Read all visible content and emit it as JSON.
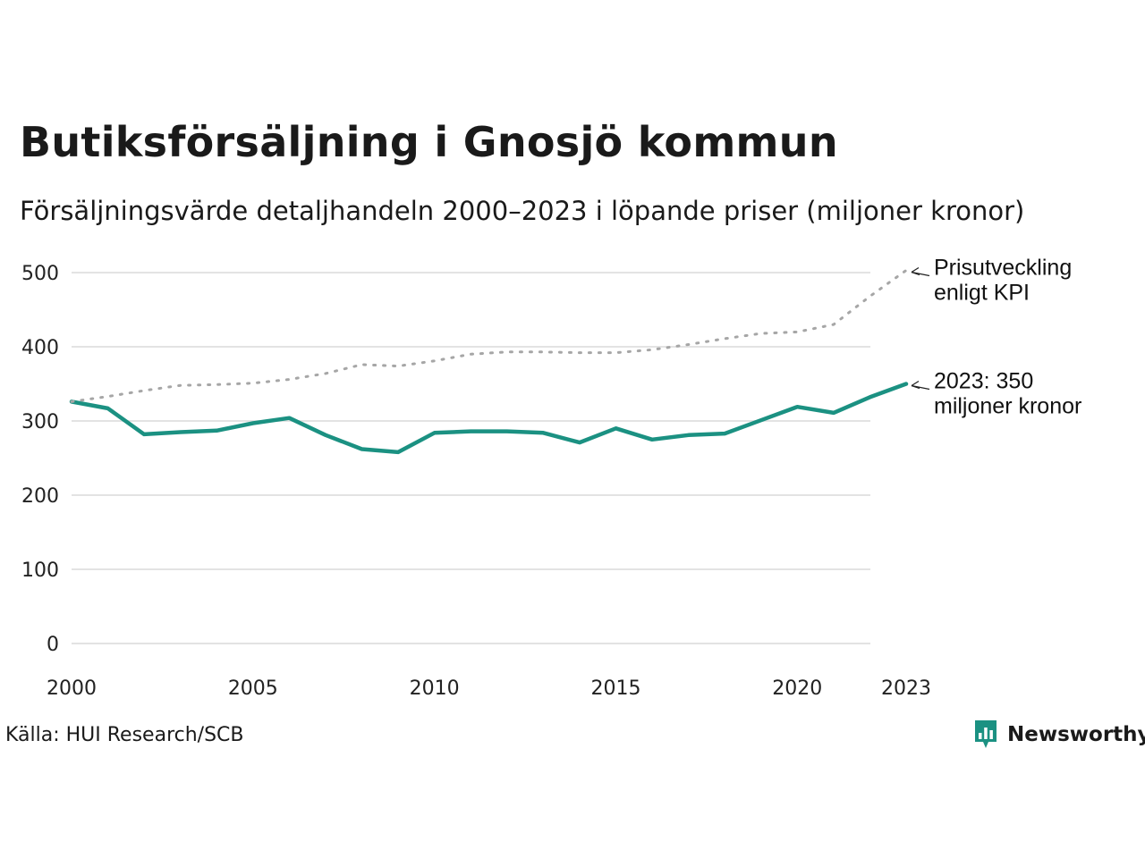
{
  "title": "Butiksförsäljning i Gnosjö kommun",
  "subtitle": "Försäljningsvärde detaljhandeln 2000–2023 i löpande priser (miljoner kronor)",
  "source": "Källa: HUI Research/SCB",
  "logo": {
    "text": "Newsworthy",
    "icon": "bar-chart-speech-bubble-icon"
  },
  "colors": {
    "sales_line": "#1b9182",
    "kpi_line": "#a6a6a6",
    "grid": "#e3e3e3",
    "brand": "#1b9182"
  },
  "chart_data": {
    "type": "line",
    "x": [
      2000,
      2001,
      2002,
      2003,
      2004,
      2005,
      2006,
      2007,
      2008,
      2009,
      2010,
      2011,
      2012,
      2013,
      2014,
      2015,
      2016,
      2017,
      2018,
      2019,
      2020,
      2021,
      2022,
      2023
    ],
    "series": [
      {
        "name": "Butiksförsäljning",
        "style": "solid",
        "values": [
          326,
          317,
          282,
          285,
          287,
          297,
          304,
          281,
          262,
          258,
          284,
          286,
          286,
          284,
          271,
          290,
          275,
          281,
          283,
          301,
          319,
          311,
          332,
          350
        ]
      },
      {
        "name": "Prisutveckling enligt KPI",
        "style": "dotted",
        "values": [
          326,
          333,
          341,
          348,
          349,
          351,
          356,
          364,
          376,
          374,
          381,
          390,
          393,
          393,
          392,
          392,
          396,
          403,
          411,
          418,
          420,
          430,
          468,
          503
        ]
      }
    ],
    "x_ticks": [
      2000,
      2005,
      2010,
      2015,
      2020,
      2023
    ],
    "y_ticks": [
      0,
      100,
      200,
      300,
      400,
      500
    ],
    "xlim": [
      2000,
      2023
    ],
    "ylim": [
      0,
      500
    ],
    "grid": true,
    "annotations": [
      {
        "series": 1,
        "lines": [
          "Prisutveckling",
          "enligt KPI"
        ]
      },
      {
        "series": 0,
        "lines": [
          "2023: 350",
          "miljoner kronor"
        ]
      }
    ]
  }
}
